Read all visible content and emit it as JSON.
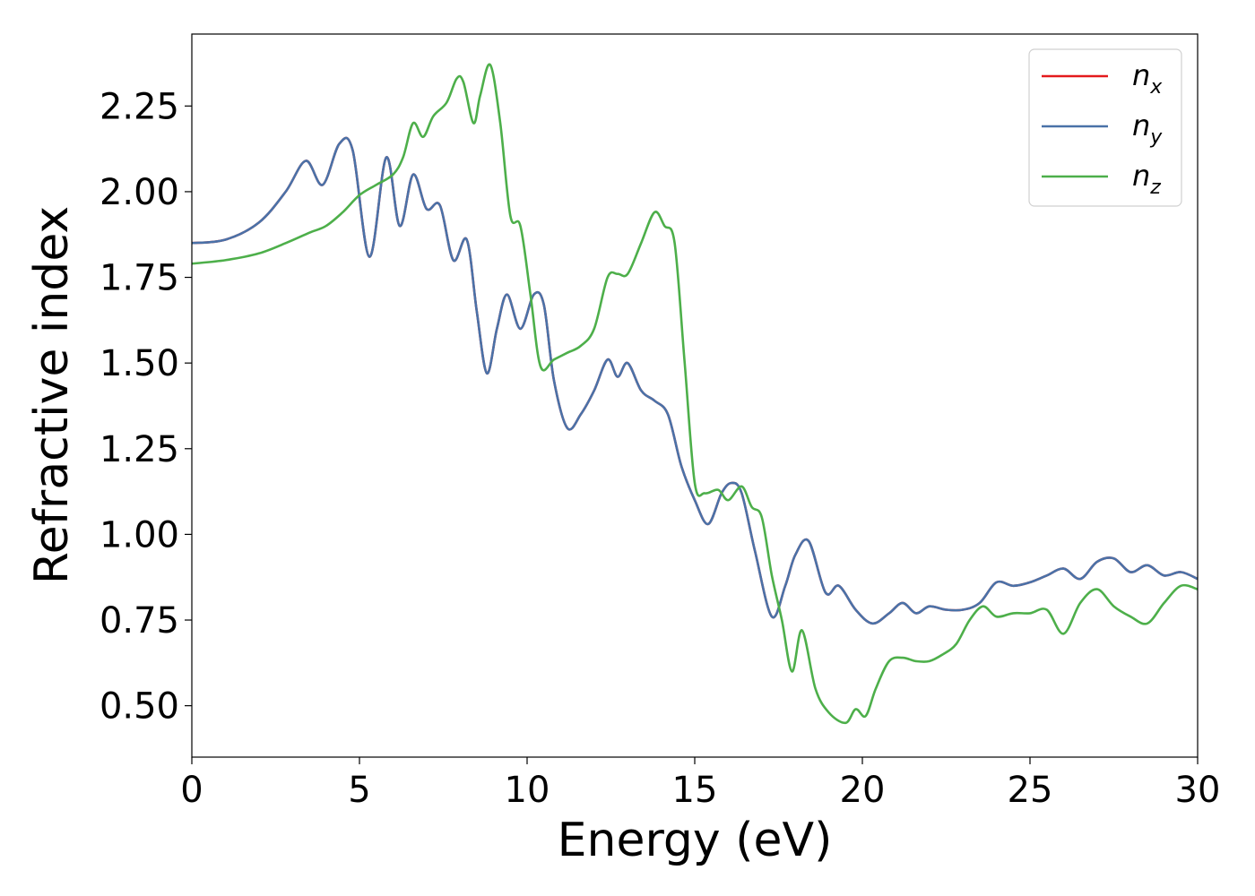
{
  "chart_data": {
    "type": "line",
    "xlabel": "Energy (eV)",
    "ylabel": "Refractive index",
    "xlim": [
      0,
      30
    ],
    "ylim": [
      0.35,
      2.46
    ],
    "xticks": [
      0,
      5,
      10,
      15,
      20,
      25,
      30
    ],
    "xtick_labels": [
      "0",
      "5",
      "10",
      "15",
      "20",
      "25",
      "30"
    ],
    "yticks": [
      0.5,
      0.75,
      1.0,
      1.25,
      1.5,
      1.75,
      2.0,
      2.25
    ],
    "ytick_labels": [
      "0.50",
      "0.75",
      "1.00",
      "1.25",
      "1.50",
      "1.75",
      "2.00",
      "2.25"
    ],
    "grid": false,
    "legend_position": "top-right",
    "series": [
      {
        "name": "n",
        "subscript": "x",
        "color": "#e41a1c",
        "x": [
          0,
          1,
          2,
          2.8,
          3.4,
          3.9,
          4.4,
          4.8,
          5.3,
          5.8,
          6.2,
          6.6,
          7.0,
          7.4,
          7.8,
          8.2,
          8.5,
          8.8,
          9.1,
          9.4,
          9.8,
          10.2,
          10.5,
          10.8,
          11.2,
          11.6,
          12.0,
          12.4,
          12.7,
          13.0,
          13.4,
          13.8,
          14.2,
          14.6,
          15.0,
          15.4,
          15.8,
          16.1,
          16.4,
          16.8,
          17.3,
          17.7,
          18.0,
          18.4,
          18.9,
          19.3,
          19.8,
          20.3,
          20.8,
          21.2,
          21.6,
          22.0,
          22.5,
          23.0,
          23.5,
          24.0,
          24.5,
          25.0,
          25.5,
          26.0,
          26.5,
          27.0,
          27.5,
          28.0,
          28.5,
          29.0,
          29.5,
          30.0
        ],
        "values": [
          1.85,
          1.86,
          1.91,
          2.0,
          2.09,
          2.02,
          2.14,
          2.12,
          1.81,
          2.1,
          1.9,
          2.05,
          1.95,
          1.96,
          1.8,
          1.86,
          1.65,
          1.47,
          1.6,
          1.7,
          1.6,
          1.7,
          1.67,
          1.45,
          1.31,
          1.35,
          1.42,
          1.51,
          1.46,
          1.5,
          1.42,
          1.39,
          1.35,
          1.2,
          1.1,
          1.03,
          1.12,
          1.15,
          1.12,
          0.95,
          0.76,
          0.85,
          0.94,
          0.98,
          0.83,
          0.85,
          0.78,
          0.74,
          0.77,
          0.8,
          0.77,
          0.79,
          0.78,
          0.78,
          0.8,
          0.86,
          0.85,
          0.86,
          0.88,
          0.9,
          0.87,
          0.92,
          0.93,
          0.89,
          0.91,
          0.88,
          0.89,
          0.87
        ]
      },
      {
        "name": "n",
        "subscript": "y",
        "color": "#4a72a8",
        "x": [
          0,
          1,
          2,
          2.8,
          3.4,
          3.9,
          4.4,
          4.8,
          5.3,
          5.8,
          6.2,
          6.6,
          7.0,
          7.4,
          7.8,
          8.2,
          8.5,
          8.8,
          9.1,
          9.4,
          9.8,
          10.2,
          10.5,
          10.8,
          11.2,
          11.6,
          12.0,
          12.4,
          12.7,
          13.0,
          13.4,
          13.8,
          14.2,
          14.6,
          15.0,
          15.4,
          15.8,
          16.1,
          16.4,
          16.8,
          17.3,
          17.7,
          18.0,
          18.4,
          18.9,
          19.3,
          19.8,
          20.3,
          20.8,
          21.2,
          21.6,
          22.0,
          22.5,
          23.0,
          23.5,
          24.0,
          24.5,
          25.0,
          25.5,
          26.0,
          26.5,
          27.0,
          27.5,
          28.0,
          28.5,
          29.0,
          29.5,
          30.0
        ],
        "values": [
          1.85,
          1.86,
          1.91,
          2.0,
          2.09,
          2.02,
          2.14,
          2.12,
          1.81,
          2.1,
          1.9,
          2.05,
          1.95,
          1.96,
          1.8,
          1.86,
          1.65,
          1.47,
          1.6,
          1.7,
          1.6,
          1.7,
          1.67,
          1.45,
          1.31,
          1.35,
          1.42,
          1.51,
          1.46,
          1.5,
          1.42,
          1.39,
          1.35,
          1.2,
          1.1,
          1.03,
          1.12,
          1.15,
          1.12,
          0.95,
          0.76,
          0.85,
          0.94,
          0.98,
          0.83,
          0.85,
          0.78,
          0.74,
          0.77,
          0.8,
          0.77,
          0.79,
          0.78,
          0.78,
          0.8,
          0.86,
          0.85,
          0.86,
          0.88,
          0.9,
          0.87,
          0.92,
          0.93,
          0.89,
          0.91,
          0.88,
          0.89,
          0.87
        ]
      },
      {
        "name": "n",
        "subscript": "z",
        "color": "#4daf4a",
        "x": [
          0,
          1,
          2,
          2.8,
          3.5,
          4.0,
          4.5,
          5.0,
          5.5,
          6.0,
          6.3,
          6.6,
          6.9,
          7.2,
          7.6,
          7.9,
          8.1,
          8.4,
          8.6,
          8.9,
          9.2,
          9.5,
          9.8,
          10.1,
          10.4,
          10.8,
          11.2,
          11.6,
          12.0,
          12.4,
          12.7,
          13.0,
          13.4,
          13.8,
          14.1,
          14.4,
          14.7,
          15.0,
          15.3,
          15.7,
          16.0,
          16.4,
          16.7,
          17.0,
          17.3,
          17.6,
          17.9,
          18.2,
          18.6,
          19.0,
          19.5,
          19.8,
          20.1,
          20.4,
          20.8,
          21.2,
          21.6,
          22.0,
          22.4,
          22.8,
          23.2,
          23.6,
          24.0,
          24.5,
          25.0,
          25.5,
          26.0,
          26.5,
          27.0,
          27.5,
          28.0,
          28.5,
          29.0,
          29.5,
          30.0
        ],
        "values": [
          1.79,
          1.8,
          1.82,
          1.85,
          1.88,
          1.9,
          1.94,
          1.99,
          2.02,
          2.05,
          2.1,
          2.2,
          2.16,
          2.22,
          2.26,
          2.33,
          2.32,
          2.2,
          2.28,
          2.37,
          2.2,
          1.93,
          1.9,
          1.7,
          1.49,
          1.51,
          1.53,
          1.55,
          1.6,
          1.75,
          1.76,
          1.76,
          1.85,
          1.94,
          1.9,
          1.85,
          1.5,
          1.15,
          1.12,
          1.13,
          1.1,
          1.14,
          1.08,
          1.05,
          0.88,
          0.75,
          0.6,
          0.72,
          0.55,
          0.48,
          0.45,
          0.49,
          0.47,
          0.55,
          0.63,
          0.64,
          0.63,
          0.63,
          0.65,
          0.68,
          0.75,
          0.79,
          0.76,
          0.77,
          0.77,
          0.78,
          0.71,
          0.8,
          0.84,
          0.79,
          0.76,
          0.74,
          0.8,
          0.85,
          0.84
        ]
      }
    ]
  }
}
